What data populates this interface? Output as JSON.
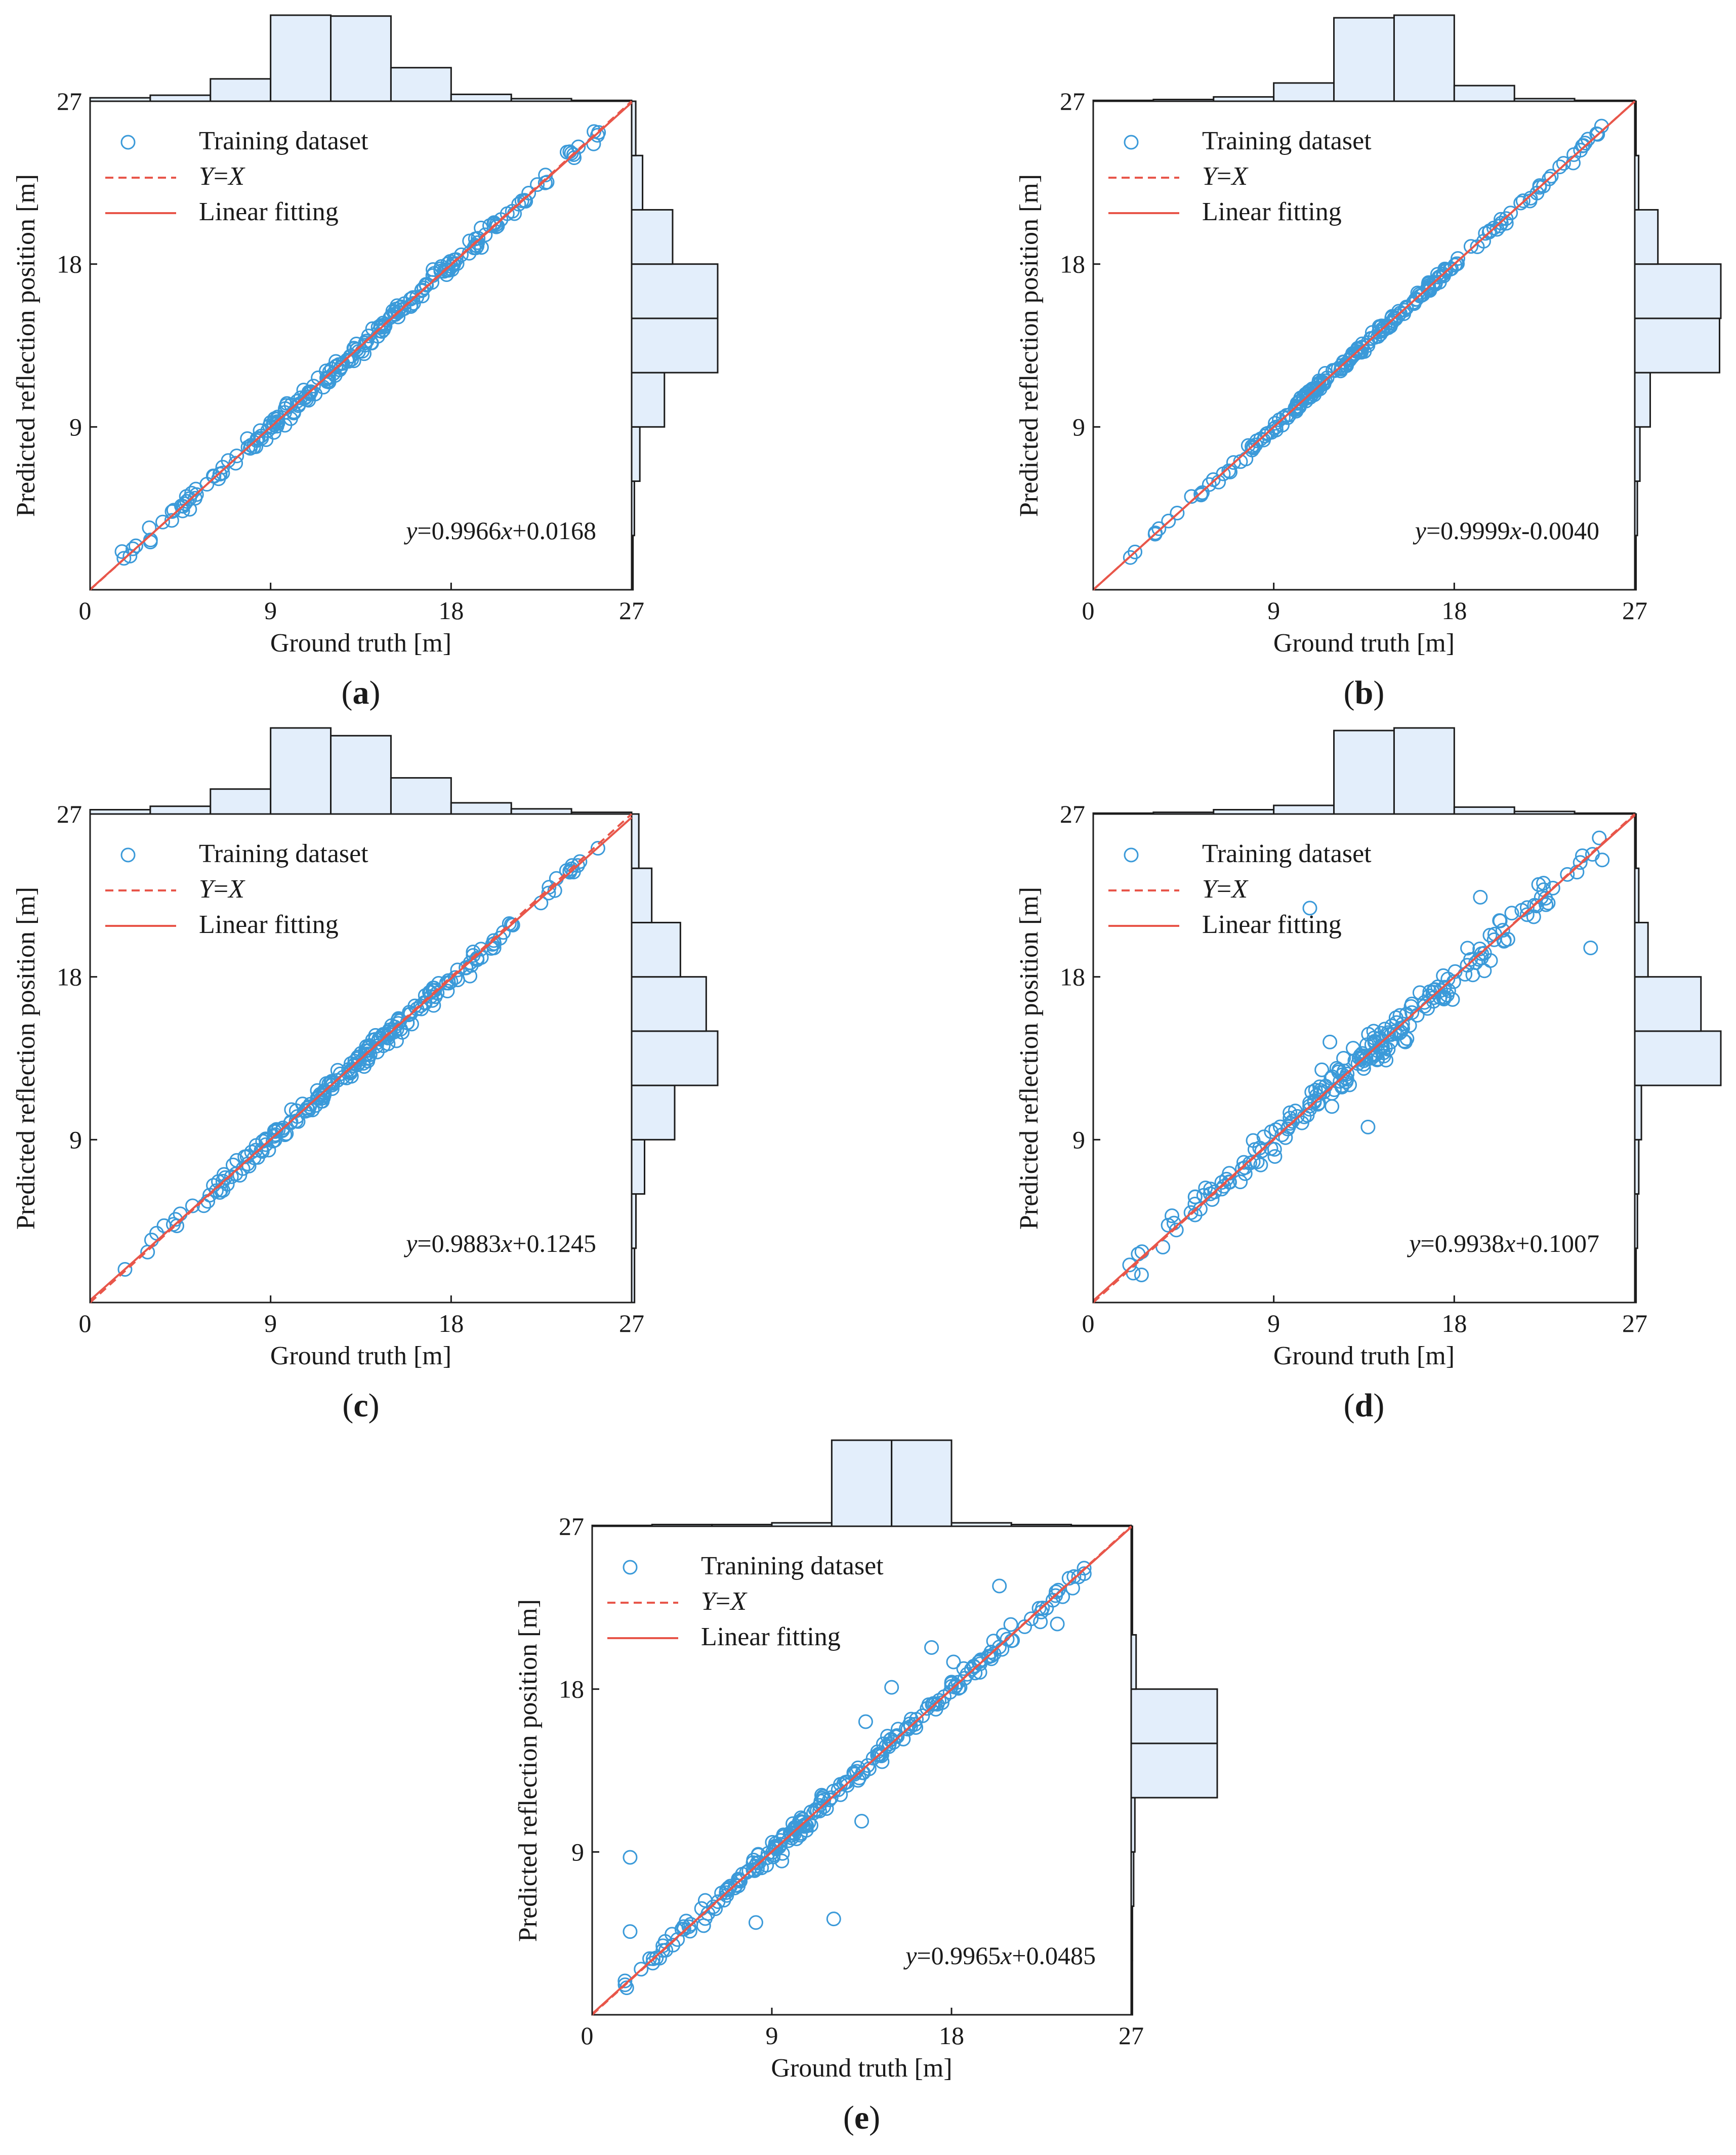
{
  "colors": {
    "marker": "#3b9ad9",
    "line": "#e8564a",
    "hist_fill": "#e3eefb",
    "hist_stroke": "#1c1c1c",
    "axis": "#1c1c1c"
  },
  "chart_data": [
    {
      "type": "scatter",
      "panel": "a",
      "panel_label": "(a)",
      "xlabel": "Ground truth [m]",
      "ylabel": "Predicted reflection position [m]",
      "xlim": [
        0,
        27
      ],
      "ylim": [
        0,
        27
      ],
      "xticks": [
        0,
        9,
        18,
        27
      ],
      "yticks": [
        9,
        18,
        27
      ],
      "x_tick_labels": [
        "0",
        "9",
        "18",
        "27"
      ],
      "y_tick_labels": [
        "9",
        "18",
        "27"
      ],
      "legend": [
        "Training dataset",
        "Y=X",
        "Linear fitting"
      ],
      "legend_location": "upper-left",
      "fit": {
        "slope": 0.9966,
        "intercept": 0.0168
      },
      "equation_label": "y=0.9966x+0.0168",
      "scatter": {
        "x_range": [
          1.5,
          25.5
        ],
        "noise": 0.25,
        "count": 230,
        "seed": 11
      },
      "hist_edges": [
        0,
        3,
        6,
        9,
        12,
        15,
        18,
        21,
        24,
        27
      ],
      "top_hist_counts": [
        4,
        7,
        26,
        100,
        99,
        39,
        8,
        3,
        1
      ],
      "right_hist_counts": [
        1,
        2,
        6,
        24,
        63,
        63,
        30,
        8,
        3
      ]
    },
    {
      "type": "scatter",
      "panel": "b",
      "panel_label": "(b)",
      "xlabel": "Ground truth [m]",
      "ylabel": "Predicted reflection position [m]",
      "xlim": [
        0,
        27
      ],
      "ylim": [
        0,
        27
      ],
      "xticks": [
        0,
        9,
        18,
        27
      ],
      "yticks": [
        9,
        18,
        27
      ],
      "x_tick_labels": [
        "0",
        "9",
        "18",
        "27"
      ],
      "y_tick_labels": [
        "9",
        "18",
        "27"
      ],
      "legend": [
        "Training dataset",
        "Y=X",
        "Linear fitting"
      ],
      "legend_location": "upper-left",
      "fit": {
        "slope": 0.9999,
        "intercept": -0.004
      },
      "equation_label": "y=0.9999x-0.0040",
      "scatter": {
        "x_range": [
          1.5,
          25.5
        ],
        "noise": 0.15,
        "count": 230,
        "seed": 23
      },
      "hist_edges": [
        0,
        3,
        6,
        9,
        12,
        15,
        18,
        21,
        24,
        27
      ],
      "top_hist_counts": [
        1,
        2,
        5,
        21,
        96,
        99,
        18,
        3,
        1
      ],
      "right_hist_counts": [
        1,
        2,
        4,
        12,
        66,
        67,
        18,
        3,
        1
      ]
    },
    {
      "type": "scatter",
      "panel": "c",
      "panel_label": "(c)",
      "xlabel": "Ground truth [m]",
      "ylabel": "Predicted reflection position [m]",
      "xlim": [
        0,
        27
      ],
      "ylim": [
        0,
        27
      ],
      "xticks": [
        0,
        9,
        18,
        27
      ],
      "yticks": [
        9,
        18,
        27
      ],
      "x_tick_labels": [
        "0",
        "9",
        "18",
        "27"
      ],
      "y_tick_labels": [
        "9",
        "18",
        "27"
      ],
      "legend": [
        "Training dataset",
        "Y=X",
        "Linear fitting"
      ],
      "legend_location": "upper-left",
      "fit": {
        "slope": 0.9883,
        "intercept": 0.1245
      },
      "equation_label": "y=0.9883x+0.1245",
      "scatter": {
        "x_range": [
          1.5,
          25.5
        ],
        "noise": 0.3,
        "count": 230,
        "seed": 37
      },
      "hist_edges": [
        0,
        3,
        6,
        9,
        12,
        15,
        18,
        21,
        24,
        27
      ],
      "top_hist_counts": [
        5,
        9,
        29,
        100,
        91,
        42,
        13,
        6,
        2
      ],
      "right_hist_counts": [
        2,
        3,
        9,
        30,
        60,
        52,
        34,
        14,
        5
      ]
    },
    {
      "type": "scatter",
      "panel": "d",
      "panel_label": "(d)",
      "xlabel": "Ground truth [m]",
      "ylabel": "Predicted reflection position [m]",
      "xlim": [
        0,
        27
      ],
      "ylim": [
        0,
        27
      ],
      "xticks": [
        0,
        9,
        18,
        27
      ],
      "yticks": [
        9,
        18,
        27
      ],
      "x_tick_labels": [
        "0",
        "9",
        "18",
        "27"
      ],
      "y_tick_labels": [
        "9",
        "18",
        "27"
      ],
      "legend": [
        "Training dataset",
        "Y=X",
        "Linear fitting"
      ],
      "legend_location": "upper-left",
      "fit": {
        "slope": 0.9938,
        "intercept": 0.1007
      },
      "equation_label": "y=0.9938x+0.1007",
      "scatter": {
        "x_range": [
          1.5,
          25.5
        ],
        "noise": 0.55,
        "count": 230,
        "seed": 41,
        "outliers": [
          [
            10.8,
            21.8
          ],
          [
            13.7,
            9.7
          ],
          [
            19.3,
            22.4
          ],
          [
            24.8,
            19.6
          ],
          [
            11.8,
            14.4
          ],
          [
            14.6,
            13.4
          ]
        ]
      },
      "hist_edges": [
        0,
        3,
        6,
        9,
        12,
        15,
        18,
        21,
        24,
        27
      ],
      "top_hist_counts": [
        1,
        2,
        5,
        10,
        97,
        100,
        8,
        3,
        1
      ],
      "right_hist_counts": [
        1,
        2,
        3,
        5,
        65,
        50,
        10,
        3,
        1
      ]
    },
    {
      "type": "scatter",
      "panel": "e",
      "panel_label": "(e)",
      "xlabel": "Ground truth [m]",
      "ylabel": "Predicted reflection position [m]",
      "xlim": [
        0,
        27
      ],
      "ylim": [
        0,
        27
      ],
      "xticks": [
        0,
        9,
        18,
        27
      ],
      "yticks": [
        9,
        18,
        27
      ],
      "x_tick_labels": [
        "0",
        "9",
        "18",
        "27"
      ],
      "y_tick_labels": [
        "9",
        "18",
        "27"
      ],
      "legend": [
        "Tranining dataset",
        "Y=X",
        "Linear fitting"
      ],
      "legend_location": "upper-left",
      "fit": {
        "slope": 0.9965,
        "intercept": 0.0485
      },
      "equation_label": "y=0.9965x+0.0485",
      "scatter": {
        "x_range": [
          1.5,
          25.5
        ],
        "noise": 0.3,
        "count": 230,
        "seed": 53,
        "outliers": [
          [
            1.9,
            8.7
          ],
          [
            1.9,
            4.6
          ],
          [
            8.2,
            5.1
          ],
          [
            12.1,
            5.3
          ],
          [
            13.5,
            10.7
          ],
          [
            13.7,
            16.2
          ],
          [
            15.0,
            18.1
          ],
          [
            17.0,
            20.3
          ],
          [
            20.4,
            23.7
          ],
          [
            23.3,
            21.6
          ],
          [
            18.1,
            19.5
          ],
          [
            9.5,
            8.5
          ]
        ]
      },
      "hist_edges": [
        0,
        3,
        6,
        9,
        12,
        15,
        18,
        21,
        24,
        27
      ],
      "top_hist_counts": [
        1,
        2,
        2,
        4,
        100,
        100,
        4,
        2,
        1
      ],
      "right_hist_counts": [
        1,
        1,
        2,
        3,
        70,
        70,
        4,
        1,
        1
      ]
    }
  ]
}
